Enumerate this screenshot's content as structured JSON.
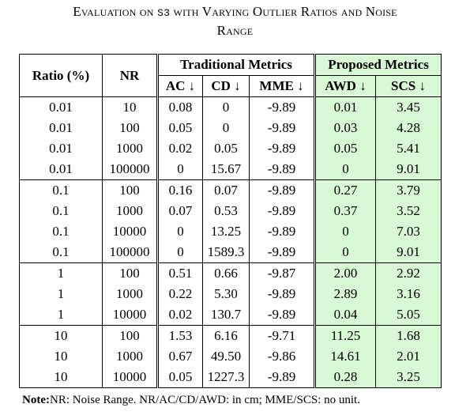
{
  "caption": {
    "line1_pre": "Evaluation on ",
    "line1_s3": "S3",
    "line1_post": " with Varying Outlier Ratios and Noise",
    "line2": "Range"
  },
  "header": {
    "ratio": "Ratio (%)",
    "nr": "NR",
    "traditional": "Traditional Metrics",
    "proposed": "Proposed Metrics",
    "ac": "AC ↓",
    "cd": "CD ↓",
    "mme": "MME ↓",
    "awd": "AWD ↓",
    "scs": "SCS ↓"
  },
  "rows": [
    [
      "0.01",
      "10",
      "0.08",
      "0",
      "-9.89",
      "0.01",
      "3.45"
    ],
    [
      "0.01",
      "100",
      "0.05",
      "0",
      "-9.89",
      "0.03",
      "4.28"
    ],
    [
      "0.01",
      "1000",
      "0.02",
      "0.05",
      "-9.89",
      "0.05",
      "5.41"
    ],
    [
      "0.01",
      "100000",
      "0",
      "15.67",
      "-9.89",
      "0",
      "9.01"
    ],
    [
      "0.1",
      "100",
      "0.16",
      "0.07",
      "-9.89",
      "0.27",
      "3.79"
    ],
    [
      "0.1",
      "1000",
      "0.07",
      "0.53",
      "-9.89",
      "0.37",
      "3.52"
    ],
    [
      "0.1",
      "10000",
      "0",
      "13.25",
      "-9.89",
      "0",
      "7.03"
    ],
    [
      "0.1",
      "100000",
      "0",
      "1589.3",
      "-9.89",
      "0",
      "9.01"
    ],
    [
      "1",
      "100",
      "0.51",
      "0.66",
      "-9.87",
      "2.00",
      "2.92"
    ],
    [
      "1",
      "1000",
      "0.22",
      "5.30",
      "-9.89",
      "2.89",
      "3.16"
    ],
    [
      "1",
      "10000",
      "0.02",
      "130.7",
      "-9.89",
      "0.04",
      "5.05"
    ],
    [
      "10",
      "100",
      "1.53",
      "6.16",
      "-9.71",
      "11.25",
      "1.68"
    ],
    [
      "10",
      "1000",
      "0.67",
      "49.50",
      "-9.86",
      "14.61",
      "2.01"
    ],
    [
      "10",
      "10000",
      "0.05",
      "1227.3",
      "-9.89",
      "0.28",
      "3.25"
    ]
  ],
  "group_sizes": [
    4,
    4,
    3,
    3
  ],
  "note": {
    "label": "Note:",
    "text_pre": "NR: Noise Range. NR/AC/CD/AWD: in ",
    "unit": "cm",
    "text_post": "; MME/SCS: no unit."
  },
  "colors": {
    "proposed_highlight": "#d8f7d5"
  }
}
